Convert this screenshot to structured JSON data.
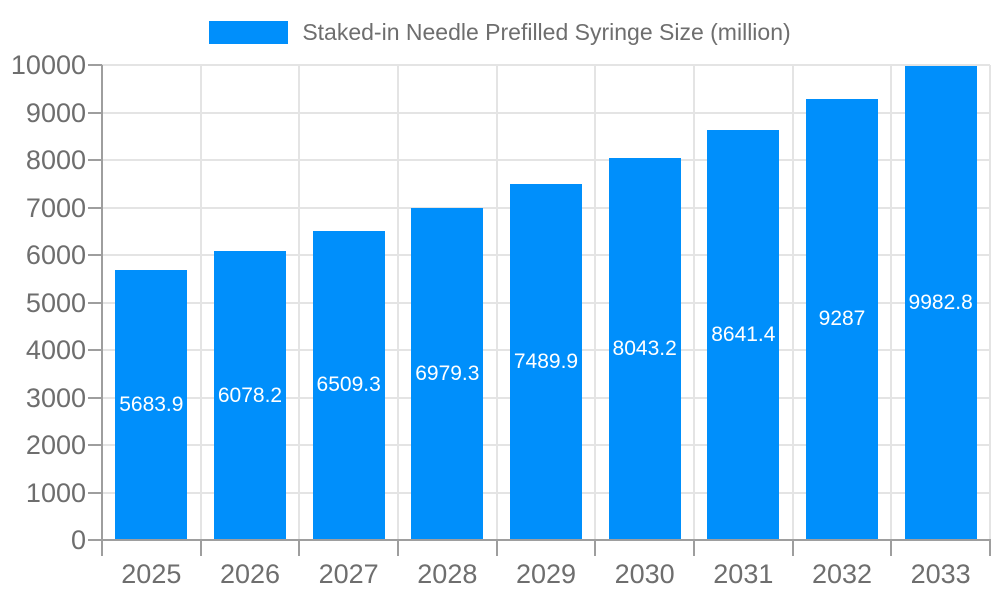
{
  "chart_data": {
    "type": "bar",
    "title": "Staked-in Needle Prefilled Syringe Size (million)",
    "categories": [
      "2025",
      "2026",
      "2027",
      "2028",
      "2029",
      "2030",
      "2031",
      "2032",
      "2033"
    ],
    "series": [
      {
        "name": "Staked-in Needle Prefilled Syringe Size (million)",
        "values": [
          5683.9,
          6078.2,
          6509.3,
          6979.3,
          7489.9,
          8043.2,
          8641.4,
          9287,
          9982.8
        ]
      }
    ],
    "value_labels": [
      "5683.9",
      "6078.2",
      "6509.3",
      "6979.3",
      "7489.9",
      "8043.2",
      "8641.4",
      "9287",
      "9982.8"
    ],
    "xlabel": "",
    "ylabel": "",
    "ylim": [
      0,
      10000
    ],
    "ytick_step": 1000,
    "ytick_labels": [
      "0",
      "1000",
      "2000",
      "3000",
      "4000",
      "5000",
      "6000",
      "7000",
      "8000",
      "9000",
      "10000"
    ],
    "grid": true,
    "legend_position": "top",
    "colors": {
      "bar": "#008ffb",
      "grid": "#e4e4e4",
      "axis": "#9e9e9e",
      "tick_text": "#6e6e6e",
      "value_label_text": "#ffffff",
      "legend_text": "#6e6e6e"
    }
  }
}
